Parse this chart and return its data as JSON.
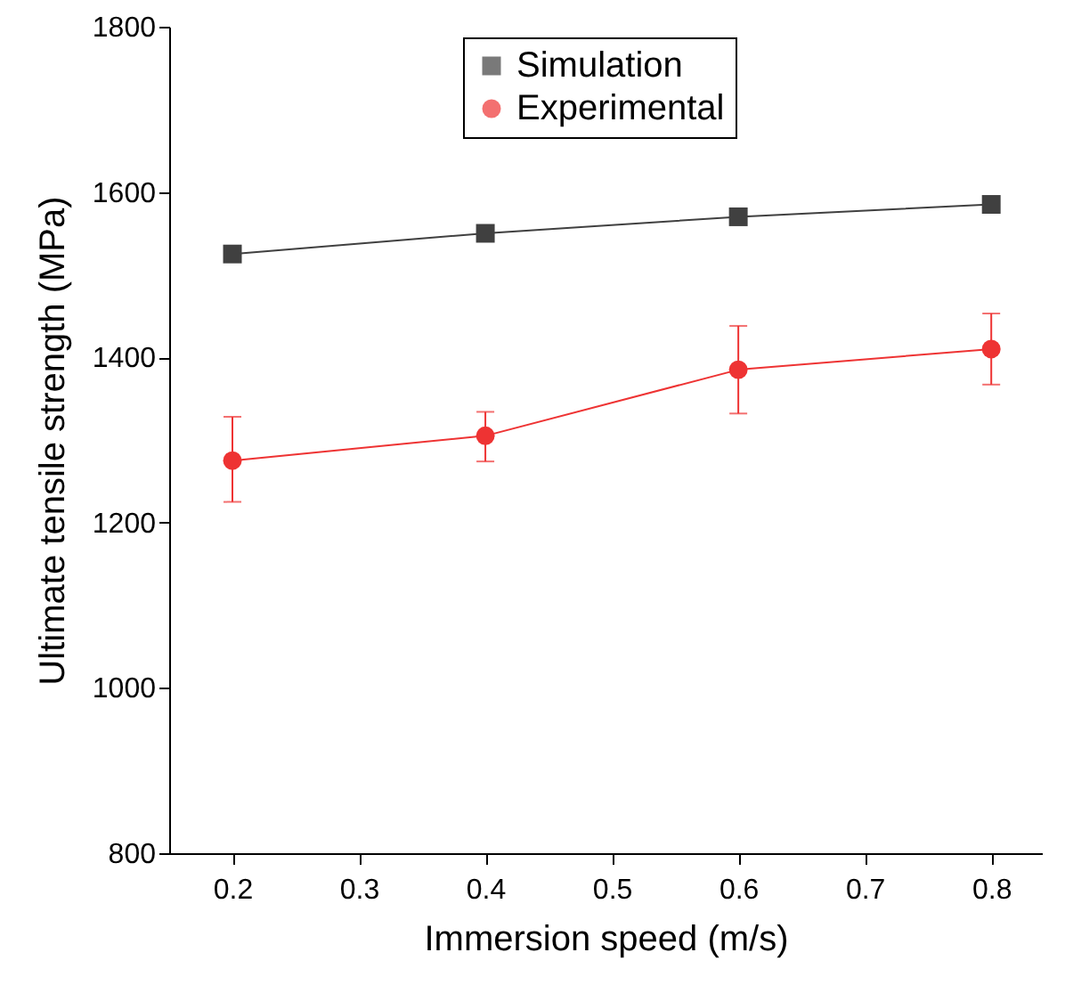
{
  "chart_data": {
    "type": "line",
    "xlabel": "Immersion speed (m/s)",
    "ylabel": "Ultimate tensile strength (MPa)",
    "x": [
      0.2,
      0.4,
      0.6,
      0.8
    ],
    "series": [
      {
        "name": "Simulation",
        "color": "#404040",
        "marker": "square",
        "values": [
          1525,
          1550,
          1570,
          1585
        ]
      },
      {
        "name": "Experimental",
        "color": "#ee3333",
        "marker": "circle",
        "values": [
          1275,
          1305,
          1385,
          1410
        ],
        "errors": [
          [
            1225,
            1328
          ],
          [
            1274,
            1334
          ],
          [
            1332,
            1438
          ],
          [
            1367,
            1453
          ]
        ]
      }
    ],
    "xlim": [
      0.15,
      0.84
    ],
    "xticks": [
      0.2,
      0.3,
      0.4,
      0.5,
      0.6,
      0.7,
      0.8
    ],
    "ylim": [
      800,
      1800
    ],
    "yticks": [
      800,
      1000,
      1200,
      1400,
      1600,
      1800
    ],
    "grid": false,
    "legend": "top",
    "line_style": "solid"
  }
}
